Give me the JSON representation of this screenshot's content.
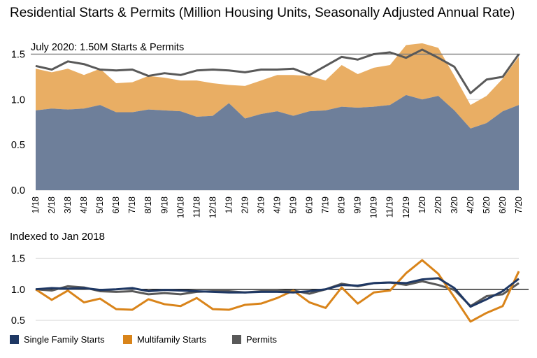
{
  "title": "Residential Starts & Permits (Million Housing Units, Seasonally Adjusted Annual Rate)",
  "colors": {
    "single_family": "#1f3864",
    "single_family_area": "#6e7f9a",
    "multifamily": "#d9841a",
    "multifamily_area": "#e9ae64",
    "permits": "#595959",
    "reference": "#000000",
    "grid": "#dcdcdc"
  },
  "chart_data": [
    {
      "type": "area",
      "title": "Residential Starts & Permits (Million Housing Units, Seasonally Adjusted Annual Rate)",
      "stacked": true,
      "annotation": "July 2020: 1.50M Starts & Permits",
      "reference_line": 1.5,
      "ylim": [
        0,
        1.65
      ],
      "yticks": [
        "0.0",
        "0.5",
        "1.0",
        "1.5"
      ],
      "grid": true,
      "xlabel": "",
      "ylabel": "",
      "categories": [
        "1/18",
        "2/18",
        "3/18",
        "4/18",
        "5/18",
        "6/18",
        "7/18",
        "8/18",
        "9/18",
        "10/18",
        "11/18",
        "12/18",
        "1/19",
        "2/19",
        "3/19",
        "4/19",
        "5/19",
        "6/19",
        "7/19",
        "8/19",
        "9/19",
        "10/19",
        "11/19",
        "12/19",
        "1/20",
        "2/20",
        "3/20",
        "4/20",
        "5/20",
        "6/20",
        "7/20"
      ],
      "series": [
        {
          "name": "Single Family Starts",
          "kind": "area",
          "values": [
            0.88,
            0.9,
            0.89,
            0.9,
            0.94,
            0.86,
            0.86,
            0.89,
            0.88,
            0.87,
            0.81,
            0.82,
            0.96,
            0.79,
            0.84,
            0.87,
            0.82,
            0.87,
            0.88,
            0.92,
            0.91,
            0.92,
            0.94,
            1.05,
            1.0,
            1.04,
            0.88,
            0.68,
            0.74,
            0.87,
            0.94
          ]
        },
        {
          "name": "Multifamily Starts",
          "kind": "area",
          "values": [
            0.46,
            0.4,
            0.45,
            0.37,
            0.4,
            0.32,
            0.33,
            0.37,
            0.36,
            0.34,
            0.4,
            0.36,
            0.2,
            0.36,
            0.37,
            0.4,
            0.45,
            0.39,
            0.33,
            0.46,
            0.37,
            0.43,
            0.44,
            0.55,
            0.62,
            0.53,
            0.38,
            0.26,
            0.3,
            0.36,
            0.53
          ]
        },
        {
          "name": "Permits",
          "kind": "line",
          "values": [
            1.37,
            1.33,
            1.42,
            1.39,
            1.33,
            1.32,
            1.33,
            1.26,
            1.29,
            1.27,
            1.32,
            1.33,
            1.32,
            1.3,
            1.33,
            1.33,
            1.34,
            1.27,
            1.37,
            1.47,
            1.44,
            1.5,
            1.52,
            1.46,
            1.55,
            1.46,
            1.36,
            1.07,
            1.22,
            1.25,
            1.5
          ]
        }
      ]
    },
    {
      "type": "line",
      "title": "Indexed to Jan 2018",
      "reference_line": 1.0,
      "ylim": [
        0.4,
        1.55
      ],
      "yticks": [
        "0.5",
        "1.0",
        "1.5"
      ],
      "grid": true,
      "xlabel": "",
      "ylabel": "",
      "categories": [
        "1/18",
        "2/18",
        "3/18",
        "4/18",
        "5/18",
        "6/18",
        "7/18",
        "8/18",
        "9/18",
        "10/18",
        "11/18",
        "12/18",
        "1/19",
        "2/19",
        "3/19",
        "4/19",
        "5/19",
        "6/19",
        "7/19",
        "8/19",
        "9/19",
        "10/19",
        "11/19",
        "12/19",
        "1/20",
        "2/20",
        "3/20",
        "4/20",
        "5/20",
        "6/20",
        "7/20"
      ],
      "series": [
        {
          "name": "Single Family Starts",
          "values": [
            1.0,
            1.02,
            1.01,
            1.02,
            0.99,
            1.0,
            1.02,
            0.97,
            0.99,
            0.98,
            0.97,
            0.96,
            0.95,
            0.95,
            0.96,
            0.96,
            0.95,
            0.97,
            1.0,
            1.07,
            1.06,
            1.1,
            1.11,
            1.1,
            1.16,
            1.18,
            1.02,
            0.72,
            0.84,
            0.97,
            1.17
          ]
        },
        {
          "name": "Multifamily Starts",
          "values": [
            1.0,
            0.83,
            0.98,
            0.79,
            0.85,
            0.68,
            0.67,
            0.84,
            0.76,
            0.73,
            0.86,
            0.68,
            0.67,
            0.75,
            0.77,
            0.86,
            0.98,
            0.79,
            0.7,
            1.03,
            0.77,
            0.95,
            0.98,
            1.26,
            1.47,
            1.25,
            0.87,
            0.48,
            0.62,
            0.73,
            1.29
          ]
        },
        {
          "name": "Permits",
          "values": [
            1.0,
            0.98,
            1.05,
            1.03,
            0.97,
            0.96,
            0.97,
            0.92,
            0.94,
            0.92,
            0.96,
            0.97,
            0.97,
            0.95,
            0.97,
            0.97,
            0.98,
            0.93,
            1.0,
            1.09,
            1.05,
            1.1,
            1.11,
            1.07,
            1.13,
            1.07,
            0.99,
            0.73,
            0.89,
            0.92,
            1.1
          ]
        }
      ]
    }
  ],
  "legend": {
    "items": [
      {
        "label": "Single Family Starts"
      },
      {
        "label": "Multifamily Starts"
      },
      {
        "label": "Permits"
      }
    ]
  }
}
